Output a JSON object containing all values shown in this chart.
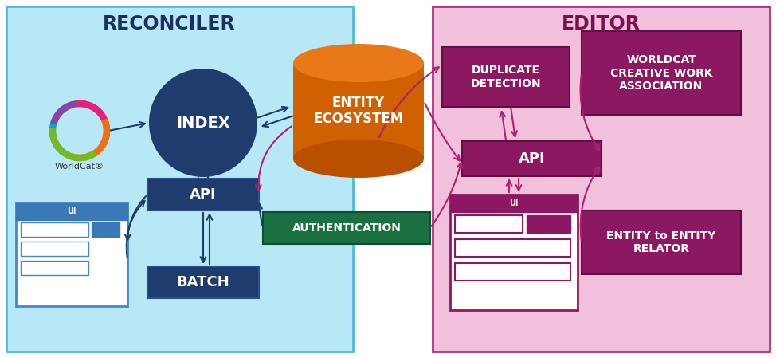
{
  "bg_color": "#ffffff",
  "reconciler_bg": "#b8e8f5",
  "reconciler_border": "#50b8e0",
  "editor_bg": "#f0c0dc",
  "editor_border": "#b03080",
  "index_color": "#1e3d6e",
  "api_r_color": "#1e3d6e",
  "batch_color": "#1e3d6e",
  "api_e_color": "#8b1860",
  "dup_color": "#8b1860",
  "wca_color": "#8b1860",
  "eer_color": "#8b1860",
  "eco_body": "#d06000",
  "eco_top": "#e87818",
  "eco_shadow": "#b85000",
  "auth_color": "#1a7040",
  "arrow_blue": "#1e3d6e",
  "arrow_magenta": "#b02070",
  "arrow_auth": "#1a7040",
  "title_r": "RECONCILER",
  "title_e": "EDITOR",
  "lbl_index": "INDEX",
  "lbl_api_r": "API",
  "lbl_batch": "BATCH",
  "lbl_api_e": "API",
  "lbl_dup": "DUPLICATE\nDETECTION",
  "lbl_wca": "WORLDCAT\nCREATIVE WORK\nASSOCIATION",
  "lbl_eco": "ENTITY\nECOSYSTEM",
  "lbl_auth": "AUTHENTICATION",
  "lbl_eer": "ENTITY to ENTITY\nRELATOR",
  "lbl_wc": "WorldCat®",
  "lbl_ui_r": "UI",
  "lbl_ui_e": "UI",
  "logo_colors": [
    "#00a8d8",
    "#8844aa",
    "#e8207c",
    "#f07010",
    "#78b820"
  ],
  "ui_r_border": "#4488cc",
  "ui_r_bar": "#3a78b8",
  "ui_r_btn": "#3a78b8",
  "ui_e_bar": "#8b1860",
  "ui_e_btn": "#8b1860"
}
